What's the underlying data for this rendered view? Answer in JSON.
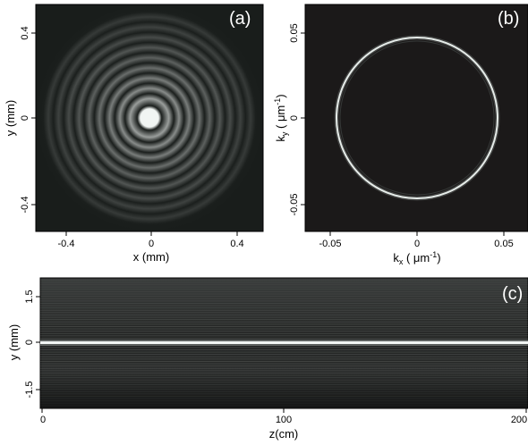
{
  "figure": {
    "panels": [
      {
        "label": "(a)",
        "type": "heatmap",
        "xlabel": "x (mm)",
        "ylabel": "y (mm)",
        "xticks": [
          "-0.4",
          "0",
          "0.4"
        ],
        "yticks": [
          "-0.4",
          "0",
          "0.4"
        ]
      },
      {
        "label": "(b)",
        "type": "heatmap",
        "xlabel_main": "k",
        "xlabel_sub": "x",
        "xlabel_unit": " ( μm",
        "xlabel_sup": "-1",
        "xlabel_close": ")",
        "ylabel_main": "k",
        "ylabel_sub": "y",
        "ylabel_unit": " ( μm",
        "ylabel_sup": "-1",
        "ylabel_close": ")",
        "xticks": [
          "-0.05",
          "0",
          "0.05"
        ],
        "yticks": [
          "-0.05",
          "0",
          "0.05"
        ]
      },
      {
        "label": "(c)",
        "type": "heatmap",
        "xlabel": "z(cm)",
        "ylabel": "y (mm)",
        "xticks": [
          "0",
          "100",
          "200"
        ],
        "yticks": [
          "-1.5",
          "0",
          "1.5"
        ]
      }
    ]
  },
  "chart_data": [
    {
      "type": "heatmap",
      "description_label": "(a)",
      "xlabel": "x (mm)",
      "ylabel": "y (mm)",
      "xlim": [
        -0.5,
        0.5
      ],
      "ylim": [
        -0.5,
        0.5
      ],
      "xticks": [
        -0.4,
        0,
        0.4
      ],
      "yticks": [
        -0.4,
        0,
        0.4
      ],
      "ring_radii_mm": [
        0.04,
        0.085,
        0.13,
        0.175,
        0.22,
        0.265,
        0.31,
        0.355,
        0.4,
        0.445
      ],
      "ring_intensity": [
        1.0,
        0.6,
        0.52,
        0.45,
        0.38,
        0.32,
        0.27,
        0.22,
        0.18,
        0.14
      ],
      "colormap": "grayscale"
    },
    {
      "type": "heatmap",
      "description_label": "(b)",
      "xlabel": "kx (μm-1)",
      "ylabel": "ky (μm-1)",
      "xlim": [
        -0.065,
        0.065
      ],
      "ylim": [
        -0.065,
        0.065
      ],
      "xticks": [
        -0.05,
        0,
        0.05
      ],
      "yticks": [
        -0.05,
        0,
        0.05
      ],
      "ring_radius_um_inv": 0.0485,
      "colormap": "grayscale"
    },
    {
      "type": "heatmap",
      "description_label": "(c)",
      "xlabel": "z(cm)",
      "ylabel": "y (mm)",
      "xlim": [
        0,
        200
      ],
      "ylim": [
        -2.1,
        2.1
      ],
      "xticks": [
        0,
        100,
        200
      ],
      "yticks": [
        -1.5,
        0,
        1.5
      ],
      "bright_line_y_mm": 0,
      "colormap": "grayscale"
    }
  ]
}
